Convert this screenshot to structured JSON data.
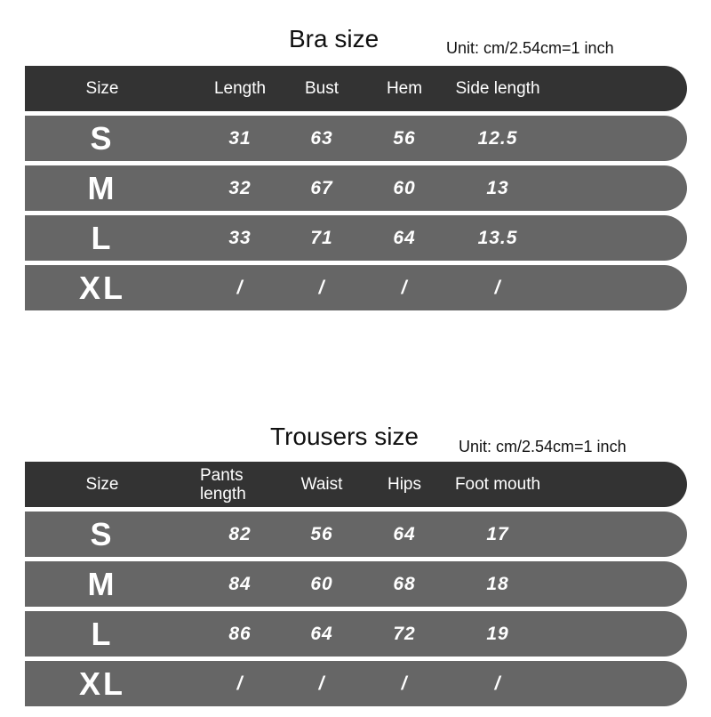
{
  "tables": [
    {
      "title": "Bra size",
      "unit": "Unit: cm/2.54cm=1 inch",
      "headers": [
        "Size",
        "Length",
        "Bust",
        "Hem",
        "Side length"
      ],
      "rows": [
        [
          "S",
          "31",
          "63",
          "56",
          "12.5"
        ],
        [
          "M",
          "32",
          "67",
          "60",
          "13"
        ],
        [
          "L",
          "33",
          "71",
          "64",
          "13.5"
        ],
        [
          "XL",
          "/",
          "/",
          "/",
          "/"
        ]
      ]
    },
    {
      "title": "Trousers size",
      "unit": "Unit: cm/2.54cm=1 inch",
      "headers": [
        "Size",
        "Pants length",
        "Waist",
        "Hips",
        "Foot mouth"
      ],
      "rows": [
        [
          "S",
          "82",
          "56",
          "64",
          "17"
        ],
        [
          "M",
          "84",
          "60",
          "68",
          "18"
        ],
        [
          "L",
          "86",
          "64",
          "72",
          "19"
        ],
        [
          "XL",
          "/",
          "/",
          "/",
          "/"
        ]
      ]
    }
  ],
  "colors": {
    "header": "#333333",
    "row": "#666666"
  }
}
